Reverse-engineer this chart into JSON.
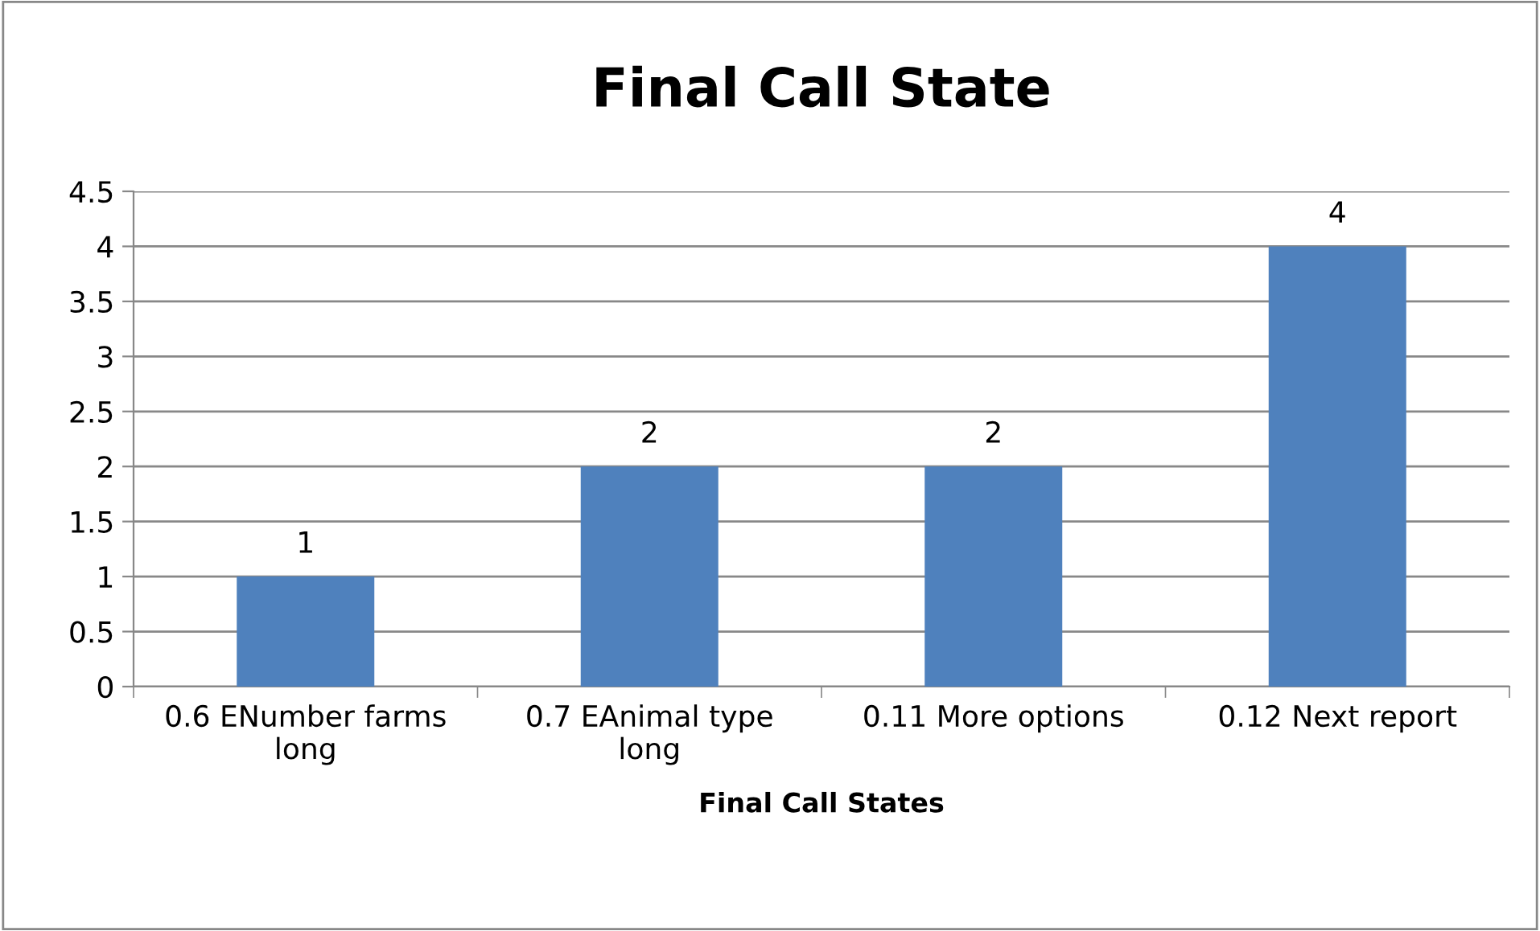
{
  "chart_data": {
    "type": "bar",
    "title": "Final Call State",
    "xlabel": "Final Call States",
    "categories": [
      "0.6 ENumber farms\nlong",
      "0.7 EAnimal type\nlong",
      "0.11 More options",
      "0.12 Next report"
    ],
    "values": [
      1,
      2,
      2,
      4
    ],
    "color": "#4f81bd",
    "ylim": [
      0,
      4.5
    ],
    "yticks": [
      0,
      0.5,
      1,
      1.5,
      2,
      2.5,
      3,
      3.5,
      4,
      4.5
    ],
    "grid": "y",
    "data_labels": true
  }
}
